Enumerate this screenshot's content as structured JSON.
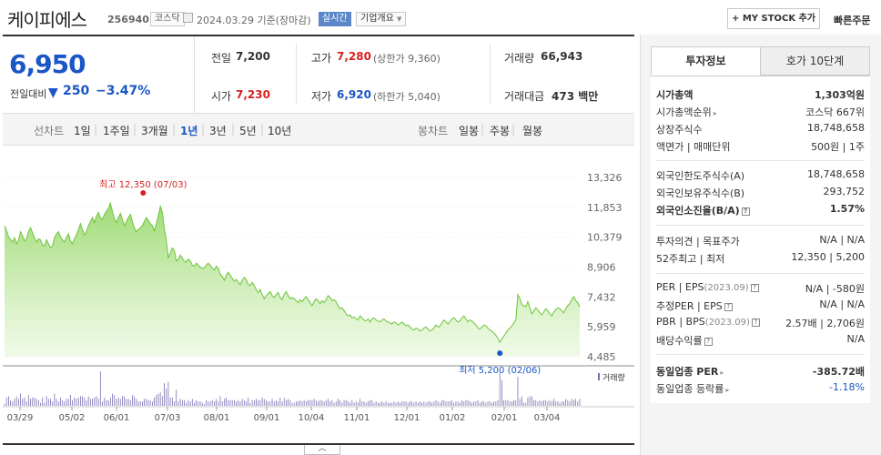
{
  "header": {
    "name": "케이피에스",
    "code": "256940",
    "market_badge": "코스닥",
    "date": "2024.03.29",
    "date_suffix": "기준(장마감)",
    "live_badge": "실시간",
    "company_info": "기업개요",
    "my_stock": "+ MY STOCK 추가",
    "quick_order": "빠른주문"
  },
  "price": {
    "current": "6,950",
    "change_label": "전일대비",
    "change_icon": "down-triangle",
    "change": "250",
    "change_pct": "−3.47%"
  },
  "summary": {
    "prev_label": "전일",
    "prev": "7,200",
    "open_label": "시가",
    "open": "7,230",
    "high_label": "고가",
    "high": "7,280",
    "upper_limit": "(상한가 9,360)",
    "low_label": "저가",
    "low": "6,920",
    "lower_limit": "(하한가 5,040)",
    "volume_label": "거래량",
    "volume": "66,943",
    "amount_label": "거래대금",
    "amount": "473 백만"
  },
  "tabs": {
    "line_label": "선차트",
    "line_periods": [
      "1일",
      "1주일",
      "3개월",
      "1년",
      "3년",
      "5년",
      "10년"
    ],
    "selected": "1년",
    "candle_label": "봉차트",
    "candle_periods": [
      "일봉",
      "주봉",
      "월봉"
    ]
  },
  "chart_data": {
    "type": "area",
    "y_ticks": [
      "13,326",
      "11,853",
      "10,379",
      "8,906",
      "7,432",
      "5,959",
      "4,485"
    ],
    "ylim": [
      4485,
      13326
    ],
    "x_ticks": [
      "03/29",
      "05/02",
      "06/01",
      "07/03",
      "08/01",
      "09/01",
      "10/04",
      "11/01",
      "12/01",
      "01/02",
      "02/01",
      "03/04"
    ],
    "high_annotation": "최고 12,350 (07/03)",
    "low_annotation": "최저 5,200 (02/06)",
    "volume_label": "거래량",
    "series": [
      {
        "values": [
          10950,
          10700,
          10400,
          10250,
          10150,
          10350,
          10050,
          10250,
          10650,
          10450,
          10200,
          10300,
          10650,
          10850,
          10600,
          10350,
          10150,
          10300,
          10250,
          10000,
          9950,
          10250,
          10050,
          9850,
          9950,
          10350,
          10550,
          10650,
          10400,
          10250,
          10150,
          10350,
          10550,
          10200,
          10050,
          10300,
          10500,
          10750,
          11050,
          10750,
          10500,
          10650,
          10950,
          11150,
          11350,
          11100,
          11400,
          11600,
          11350,
          11250,
          11500,
          11650,
          11800,
          12050,
          11650,
          11300,
          11100,
          11350,
          11550,
          11250,
          10950,
          11150,
          11350,
          11500,
          11150,
          10850,
          10650,
          10750,
          10850,
          10950,
          11150,
          11350,
          11200,
          11050,
          10950,
          10700,
          11050,
          11450,
          11900,
          11600,
          10800,
          10200,
          9350,
          9600,
          9850,
          9750,
          9200,
          9300,
          9500,
          9350,
          9200,
          9150,
          9300,
          9200,
          9000,
          8950,
          9100,
          9000,
          8900,
          8850,
          8850,
          9000,
          9100,
          9000,
          8850,
          8750,
          8950,
          8850,
          8550,
          8450,
          8250,
          8500,
          8650,
          8500,
          8350,
          8200,
          8300,
          8150,
          8050,
          8250,
          8400,
          8300,
          8050,
          8000,
          8150,
          8000,
          7800,
          7650,
          7800,
          7550,
          7350,
          7500,
          7600,
          7700,
          7500,
          7400,
          7550,
          7650,
          7400,
          7300,
          7550,
          7700,
          7500,
          7350,
          7400,
          7350,
          7250,
          7150,
          7300,
          7200,
          7350,
          7450,
          7300,
          7150,
          7000,
          7200,
          7350,
          7250,
          7100,
          7250,
          7150,
          7300,
          7500,
          7400,
          7250,
          7300,
          7200,
          7000,
          6850,
          6900,
          6750,
          6600,
          6500,
          6550,
          6400,
          6450,
          6350,
          6300,
          6500,
          6400,
          6300,
          6250,
          6350,
          6200,
          6350,
          6400,
          6300,
          6250,
          6200,
          6300,
          6350,
          6250,
          6200,
          6150,
          6100,
          6200,
          6150,
          6050,
          6100,
          6200,
          6100,
          6000,
          6050,
          5950,
          5850,
          5800,
          5900,
          5850,
          5750,
          5800,
          5900,
          5950,
          5850,
          5750,
          5800,
          5900,
          6050,
          5950,
          6000,
          6150,
          6300,
          6200,
          6100,
          6200,
          6350,
          6400,
          6300,
          6200,
          6250,
          6400,
          6500,
          6350,
          6200,
          6300,
          6250,
          6150,
          6050,
          5900,
          5850,
          5950,
          6050,
          6000,
          5900,
          5800,
          5750,
          5650,
          5550,
          5400,
          5200,
          5350,
          5500,
          5650,
          5800,
          5900,
          6000,
          6150,
          6300,
          7550,
          7350,
          7050,
          7000,
          6950,
          7200,
          6900,
          6600,
          6750,
          6900,
          6800,
          6650,
          6550,
          6700,
          6850,
          6750,
          6600,
          6500,
          6700,
          6800,
          6900,
          6850,
          6750,
          6650,
          6850,
          7000,
          7100,
          7300,
          7450,
          7250,
          7150,
          6950
        ]
      }
    ]
  },
  "right": {
    "tab_active": "투자정보",
    "tab_inactive": "호가 10단계",
    "rows": [
      {
        "k": "시가총액",
        "v": "1,303억원"
      },
      {
        "k": "시가총액순위",
        "v": "코스닥 667위"
      },
      {
        "k": "상장주식수",
        "v": "18,748,658"
      },
      {
        "k": "액면가 | 매매단위",
        "v": "500원 | 1주"
      },
      {
        "k": "외국인한도주식수(A)",
        "v": "18,748,658"
      },
      {
        "k": "외국인보유주식수(B)",
        "v": "293,752"
      },
      {
        "k": "외국인소진율(B/A)",
        "v": "1.57%"
      },
      {
        "k": "투자의견 | 목표주가",
        "v": "N/A | N/A"
      },
      {
        "k": "52주최고 | 최저",
        "v": "12,350 | 5,200"
      },
      {
        "k": "PER | EPS",
        "k_sub": "(2023.09)",
        "v": "N/A | -580원"
      },
      {
        "k": "추정PER | EPS",
        "v": "N/A | N/A"
      },
      {
        "k": "PBR | BPS",
        "k_sub": "(2023.09)",
        "v": "2.57배 | 2,706원"
      },
      {
        "k": "배당수익률",
        "v": "N/A"
      },
      {
        "k": "동일업종 PER",
        "v": "-385.72배"
      },
      {
        "k": "동일업종 등락률",
        "v": "-1.18%"
      }
    ]
  }
}
